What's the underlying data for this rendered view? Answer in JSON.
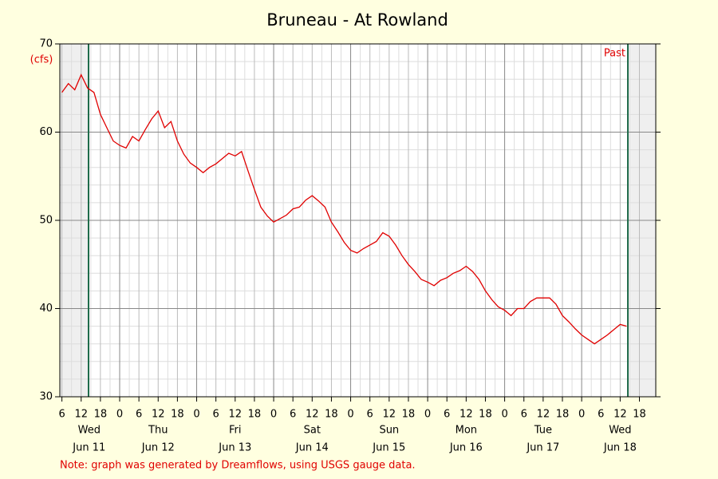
{
  "chart_data": {
    "type": "line",
    "title": "Bruneau - At Rowland",
    "y_label": "(cfs)",
    "note": "Note: graph was generated by Dreamflows, using USGS gauge data.",
    "x": [
      6,
      8,
      10,
      12,
      14,
      16,
      18,
      20,
      22,
      24,
      26,
      28,
      30,
      32,
      34,
      36,
      38,
      40,
      42,
      44,
      46,
      48,
      50,
      52,
      54,
      56,
      58,
      60,
      62,
      64,
      66,
      68,
      70,
      72,
      74,
      76,
      78,
      80,
      82,
      84,
      86,
      88,
      90,
      92,
      94,
      96,
      98,
      100,
      102,
      104,
      106,
      108,
      110,
      112,
      114,
      116,
      118,
      120,
      122,
      124,
      126,
      128,
      130,
      132,
      134,
      136,
      138,
      140,
      142,
      144,
      146,
      148,
      150,
      152,
      154,
      156,
      158,
      160,
      162,
      164,
      166,
      168,
      170,
      172,
      174,
      176,
      178,
      180,
      182
    ],
    "series": [
      {
        "color": "#e00000",
        "values": [
          64.5,
          65.5,
          64.8,
          66.5,
          65,
          64.5,
          62,
          60.5,
          59,
          58.5,
          58.2,
          59.5,
          59,
          60.3,
          61.5,
          62.4,
          60.5,
          61.2,
          59,
          57.5,
          56.5,
          56,
          55.4,
          56,
          56.4,
          57,
          57.6,
          57.3,
          57.8,
          55.6,
          53.5,
          51.5,
          50.5,
          49.8,
          50.2,
          50.6,
          51.3,
          51.5,
          52.3,
          52.8,
          52.2,
          51.5,
          49.8,
          48.7,
          47.5,
          46.6,
          46.3,
          46.8,
          47.2,
          47.6,
          48.6,
          48.2,
          47.2,
          46,
          45,
          44.2,
          43.3,
          43,
          42.6,
          43.2,
          43.5,
          44,
          44.3,
          44.8,
          44.2,
          43.3,
          42,
          41,
          40.2,
          39.8,
          39.2,
          40,
          40,
          40.8,
          41.2,
          41.2,
          41.2,
          40.5,
          39.2,
          38.5,
          37.7,
          37,
          36.5,
          36,
          36.5,
          37,
          37.6,
          38.2,
          38
        ]
      }
    ],
    "xlim": [
      5.35,
      191.1
    ],
    "xticks": [
      6,
      12,
      18,
      {
        "value": 24,
        "label": "0"
      },
      {
        "value": 30,
        "label": "6"
      },
      {
        "value": 36,
        "label": "12"
      },
      {
        "value": 42,
        "label": "18"
      },
      {
        "value": 48,
        "label": "0"
      },
      {
        "value": 54,
        "label": "6"
      },
      {
        "value": 60,
        "label": "12"
      },
      {
        "value": 66,
        "label": "18"
      },
      {
        "value": 72,
        "label": "0"
      },
      {
        "value": 78,
        "label": "6"
      },
      {
        "value": 84,
        "label": "12"
      },
      {
        "value": 90,
        "label": "18"
      },
      {
        "value": 96,
        "label": "0"
      },
      {
        "value": 102,
        "label": "6"
      },
      {
        "value": 108,
        "label": "12"
      },
      {
        "value": 114,
        "label": "18"
      },
      {
        "value": 120,
        "label": "0"
      },
      {
        "value": 126,
        "label": "6"
      },
      {
        "value": 132,
        "label": "12"
      },
      {
        "value": 138,
        "label": "18"
      },
      {
        "value": 144,
        "label": "0"
      },
      {
        "value": 150,
        "label": "6"
      },
      {
        "value": 156,
        "label": "12"
      },
      {
        "value": 162,
        "label": "18"
      },
      {
        "value": 168,
        "label": "0"
      },
      {
        "value": 174,
        "label": "6"
      },
      {
        "value": 180,
        "label": "12"
      },
      {
        "value": 186,
        "label": "18"
      }
    ],
    "days": [
      {
        "value": 14.5,
        "weekday": "Wed",
        "date": "Jun 11"
      },
      {
        "value": 36,
        "weekday": "Thu",
        "date": "Jun 12"
      },
      {
        "value": 60,
        "weekday": "Fri",
        "date": "Jun 13"
      },
      {
        "value": 84,
        "weekday": "Sat",
        "date": "Jun 14"
      },
      {
        "value": 108,
        "weekday": "Sun",
        "date": "Jun 15"
      },
      {
        "value": 132,
        "weekday": "Mon",
        "date": "Jun 16"
      },
      {
        "value": 156,
        "weekday": "Tue",
        "date": "Jun 17"
      },
      {
        "value": 180,
        "weekday": "Wed",
        "date": "Jun 18"
      }
    ],
    "markers": [
      {
        "x": 14.3
      },
      {
        "x": 182.4,
        "label": "Past"
      }
    ],
    "marker_color": "#1f6b4a",
    "ylim": [
      30,
      70
    ],
    "yticks": [
      30,
      40,
      50,
      60,
      70
    ],
    "grid": true
  }
}
